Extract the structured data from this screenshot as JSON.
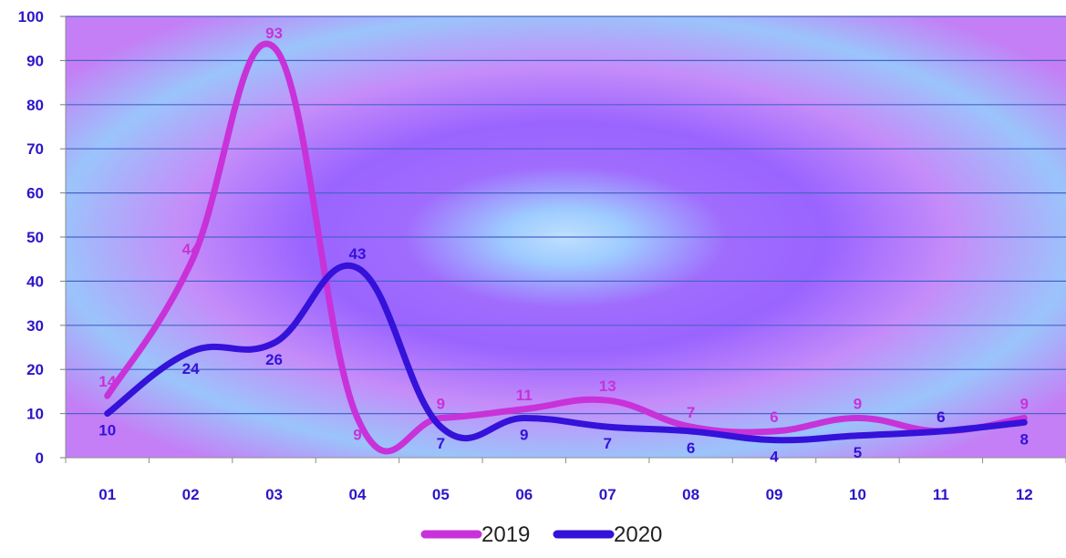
{
  "chart_data": {
    "type": "line",
    "categories": [
      "01",
      "02",
      "03",
      "04",
      "05",
      "06",
      "07",
      "08",
      "09",
      "10",
      "11",
      "12"
    ],
    "series": [
      {
        "name": "2019",
        "values": [
          14,
          44,
          93,
          9,
          9,
          11,
          13,
          7,
          6,
          9,
          6,
          9
        ],
        "color": "#c832d9"
      },
      {
        "name": "2020",
        "values": [
          10,
          24,
          26,
          43,
          7,
          9,
          7,
          6,
          4,
          5,
          6,
          8
        ],
        "color": "#3412d9"
      }
    ],
    "ylim": [
      0,
      100
    ],
    "y_ticks": [
      "0",
      "10",
      "20",
      "30",
      "40",
      "50",
      "60",
      "70",
      "80",
      "90",
      "100"
    ],
    "smooth": true,
    "grid": true,
    "legend": "bottom",
    "data_labels": true
  }
}
